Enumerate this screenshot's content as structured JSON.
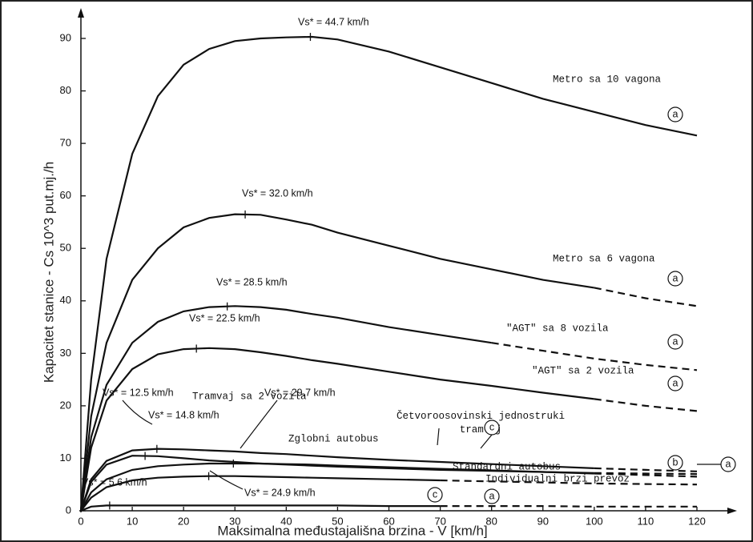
{
  "chart_data": {
    "type": "line",
    "xlabel": "Maksimalna međustajališna brzina  -  V  [km/h]",
    "ylabel": "Kapacitet stanice  -  Cs 10^3 put.mj./h",
    "xlim": [
      0,
      120
    ],
    "ylim": [
      0,
      90
    ],
    "xticks": [
      0,
      10,
      20,
      30,
      40,
      50,
      60,
      70,
      80,
      90,
      100,
      110,
      120
    ],
    "yticks": [
      0,
      10,
      20,
      30,
      40,
      50,
      60,
      70,
      80,
      90
    ],
    "x": [
      0,
      2,
      5,
      10,
      15,
      20,
      25,
      30,
      35,
      40,
      45,
      50,
      60,
      70,
      80,
      90,
      100,
      110,
      120
    ],
    "series": [
      {
        "name": "Metro sa 10 vagona",
        "color": "#111111",
        "peak_x": 44.7,
        "peak_label": "Vs* = 44.7 km/h",
        "values": [
          0,
          25,
          48,
          68,
          79,
          85,
          88,
          89.5,
          90,
          90.2,
          90.3,
          89.8,
          87.5,
          84.5,
          81.5,
          78.5,
          76,
          73.5,
          71.5
        ]
      },
      {
        "name": "Metro sa 6 vagona",
        "color": "#111111",
        "peak_x": 32.0,
        "peak_label": "Vs* = 32.0 km/h",
        "dash_from_x": 100,
        "values": [
          0,
          18,
          32,
          44,
          50,
          54,
          55.8,
          56.5,
          56.4,
          55.5,
          54.5,
          53,
          50.5,
          48,
          46,
          44,
          42.5,
          40.5,
          39
        ]
      },
      {
        "name": "\"AGT\" sa 8 vozila",
        "color": "#111111",
        "peak_x": 28.5,
        "peak_label": "Vs* = 28.5 km/h",
        "dash_from_x": 80,
        "values": [
          0,
          14,
          24,
          32,
          36,
          38,
          38.8,
          39,
          38.8,
          38.3,
          37.5,
          36.8,
          35,
          33.5,
          32,
          30.5,
          29,
          27.8,
          26.8
        ]
      },
      {
        "name": "\"AGT\" sa 2 vozila",
        "color": "#111111",
        "peak_x": 22.5,
        "peak_label": "Vs* = 22.5 km/h",
        "dash_from_x": 100,
        "values": [
          0,
          12,
          21,
          27,
          29.8,
          30.8,
          31,
          30.8,
          30.2,
          29.5,
          28.7,
          28,
          26.5,
          25,
          23.8,
          22.5,
          21.3,
          20,
          19
        ]
      },
      {
        "name": "Četvoroosovinski jednostruki tramvaj",
        "color": "#111111",
        "peak_x": 14.8,
        "peak_label": "Vs* = 14.8 km/h",
        "dash_from_x": 100,
        "values": [
          0,
          6,
          9.5,
          11.5,
          11.8,
          11.7,
          11.5,
          11.3,
          11,
          10.8,
          10.5,
          10.2,
          9.7,
          9.3,
          8.9,
          8.5,
          8.1,
          7.8,
          7.5
        ]
      },
      {
        "name": "Tramvaj sa 2 vozila",
        "color": "#111111",
        "peak_x": 12.5,
        "peak_label": "Vs* = 12.5 km/h",
        "dash_from_x": 100,
        "values": [
          0,
          5.5,
          8.8,
          10.5,
          10.4,
          10,
          9.6,
          9.3,
          9,
          8.8,
          8.6,
          8.4,
          8.1,
          7.8,
          7.6,
          7.4,
          7.2,
          7.1,
          7
        ]
      },
      {
        "name": "Zglobni autobus",
        "color": "#111111",
        "peak_x": 29.7,
        "peak_label": "Vs* = 29.7 km/h",
        "dash_from_x": 100,
        "values": [
          0,
          3.5,
          6,
          7.8,
          8.5,
          8.8,
          9,
          9,
          9,
          8.9,
          8.8,
          8.6,
          8.3,
          8,
          7.7,
          7.4,
          7.1,
          6.8,
          6.5
        ]
      },
      {
        "name": "Standardni autobus",
        "color": "#111111",
        "peak_x": 24.9,
        "peak_label": "Vs* = 24.9 km/h",
        "dash_from_x": 70,
        "values": [
          0,
          2.5,
          4.5,
          5.8,
          6.3,
          6.5,
          6.6,
          6.6,
          6.5,
          6.4,
          6.3,
          6.2,
          6,
          5.8,
          5.6,
          5.4,
          5.2,
          5.1,
          5
        ]
      },
      {
        "name": "Individualni brzi prevoz",
        "color": "#111111",
        "peak_x": 5.6,
        "peak_label": "Vs* = 5.6 km/h",
        "dash_from_x": 70,
        "values": [
          0,
          0.8,
          1,
          1,
          1,
          1,
          1,
          1,
          1,
          1,
          1,
          1,
          0.9,
          0.9,
          0.9,
          0.9,
          0.8,
          0.8,
          0.8
        ]
      }
    ],
    "markers": [
      "a",
      "a",
      "a",
      "a",
      "c",
      "b",
      "a",
      "c",
      "a"
    ]
  }
}
